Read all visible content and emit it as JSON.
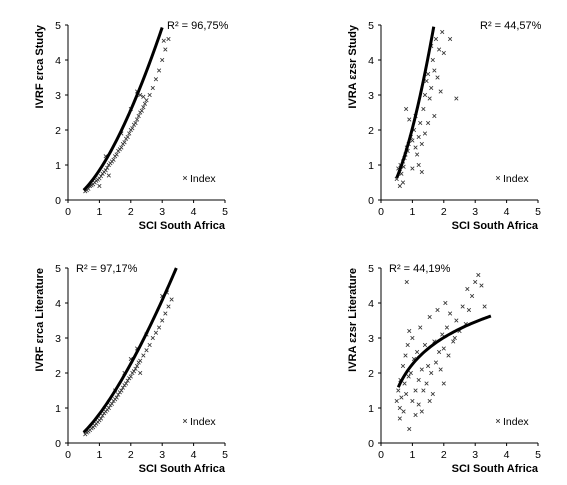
{
  "chart_data": [
    {
      "type": "scatter",
      "xlabel": "SCI South Africa",
      "ylabel": "IVRF εrca Study",
      "xlim": [
        0,
        5
      ],
      "ylim": [
        0,
        5
      ],
      "xticks": [
        "0",
        "1",
        "2",
        "3",
        "4",
        "5"
      ],
      "yticks": [
        "0",
        "1",
        "2",
        "3",
        "4",
        "5"
      ],
      "r2_label": "R² = 96,75%",
      "r2_placement": "top-right",
      "legend_label": "Index",
      "marker": "×",
      "trend": {
        "kind": "power",
        "a": 0.85,
        "b": 1.6,
        "x_from": 0.5,
        "x_to": 3.0
      },
      "points": [
        [
          0.55,
          0.25
        ],
        [
          0.6,
          0.28
        ],
        [
          0.65,
          0.32
        ],
        [
          0.7,
          0.4
        ],
        [
          0.75,
          0.42
        ],
        [
          0.8,
          0.45
        ],
        [
          0.85,
          0.5
        ],
        [
          0.9,
          0.55
        ],
        [
          0.95,
          0.58
        ],
        [
          1.0,
          0.62
        ],
        [
          1.05,
          0.68
        ],
        [
          1.1,
          0.75
        ],
        [
          1.15,
          0.8
        ],
        [
          1.2,
          0.85
        ],
        [
          1.25,
          0.92
        ],
        [
          1.3,
          1.0
        ],
        [
          1.35,
          1.05
        ],
        [
          1.4,
          1.1
        ],
        [
          1.45,
          1.15
        ],
        [
          1.5,
          1.25
        ],
        [
          1.55,
          1.3
        ],
        [
          1.6,
          1.4
        ],
        [
          1.65,
          1.45
        ],
        [
          1.7,
          1.5
        ],
        [
          1.75,
          1.6
        ],
        [
          1.8,
          1.65
        ],
        [
          1.85,
          1.75
        ],
        [
          1.9,
          1.8
        ],
        [
          1.95,
          1.9
        ],
        [
          2.0,
          2.0
        ],
        [
          2.05,
          2.05
        ],
        [
          2.1,
          2.15
        ],
        [
          2.15,
          2.2
        ],
        [
          2.2,
          2.3
        ],
        [
          2.25,
          2.4
        ],
        [
          2.3,
          2.5
        ],
        [
          2.35,
          2.55
        ],
        [
          2.4,
          2.65
        ],
        [
          2.45,
          2.75
        ],
        [
          2.5,
          2.85
        ],
        [
          2.6,
          3.0
        ],
        [
          2.7,
          3.2
        ],
        [
          2.8,
          3.45
        ],
        [
          2.9,
          3.7
        ],
        [
          3.0,
          4.0
        ],
        [
          3.1,
          4.3
        ],
        [
          3.2,
          4.6
        ],
        [
          1.0,
          0.4
        ],
        [
          1.3,
          0.7
        ],
        [
          2.2,
          3.1
        ],
        [
          2.4,
          2.95
        ],
        [
          1.7,
          1.9
        ],
        [
          2.0,
          2.6
        ],
        [
          2.3,
          3.0
        ],
        [
          3.05,
          4.55
        ],
        [
          1.2,
          1.25
        ]
      ]
    },
    {
      "type": "scatter",
      "xlabel": "SCI South Africa",
      "ylabel": "IVRA εzsr Study",
      "xlim": [
        0,
        5
      ],
      "ylim": [
        0,
        5
      ],
      "xticks": [
        "0",
        "1",
        "2",
        "3",
        "4",
        "5"
      ],
      "yticks": [
        "0",
        "1",
        "2",
        "3",
        "4",
        "5"
      ],
      "r2_label": "R² = 44,57%",
      "r2_placement": "top-right",
      "legend_label": "Index",
      "marker": "×",
      "trend": {
        "kind": "power",
        "a": 2.05,
        "b": 1.7,
        "x_from": 0.5,
        "x_to": 1.68
      },
      "points": [
        [
          0.5,
          0.6
        ],
        [
          0.55,
          0.9
        ],
        [
          0.6,
          0.8
        ],
        [
          0.62,
          1.0
        ],
        [
          0.65,
          0.75
        ],
        [
          0.7,
          1.1
        ],
        [
          0.72,
          0.95
        ],
        [
          0.75,
          1.2
        ],
        [
          0.78,
          1.3
        ],
        [
          0.8,
          2.6
        ],
        [
          0.82,
          1.5
        ],
        [
          0.85,
          1.4
        ],
        [
          0.88,
          1.6
        ],
        [
          0.9,
          2.3
        ],
        [
          0.95,
          1.8
        ],
        [
          1.0,
          1.7
        ],
        [
          1.0,
          0.9
        ],
        [
          1.05,
          2.0
        ],
        [
          1.1,
          1.5
        ],
        [
          1.1,
          2.4
        ],
        [
          1.15,
          1.3
        ],
        [
          1.2,
          1.8
        ],
        [
          1.2,
          1.0
        ],
        [
          1.25,
          2.2
        ],
        [
          1.3,
          1.6
        ],
        [
          1.3,
          0.8
        ],
        [
          1.35,
          2.6
        ],
        [
          1.4,
          3.0
        ],
        [
          1.4,
          1.9
        ],
        [
          1.45,
          3.4
        ],
        [
          1.5,
          2.2
        ],
        [
          1.5,
          3.6
        ],
        [
          1.55,
          2.9
        ],
        [
          1.6,
          4.4
        ],
        [
          1.6,
          3.2
        ],
        [
          1.65,
          4.0
        ],
        [
          1.7,
          3.7
        ],
        [
          1.7,
          2.4
        ],
        [
          1.75,
          4.6
        ],
        [
          1.8,
          3.5
        ],
        [
          1.85,
          4.3
        ],
        [
          1.9,
          3.1
        ],
        [
          1.95,
          4.8
        ],
        [
          2.0,
          4.2
        ],
        [
          2.2,
          4.6
        ],
        [
          2.4,
          2.9
        ],
        [
          0.7,
          0.5
        ],
        [
          0.6,
          0.4
        ]
      ]
    },
    {
      "type": "scatter",
      "xlabel": "SCI South Africa",
      "ylabel": "IVRF εrca Literature",
      "xlim": [
        0,
        5
      ],
      "ylim": [
        0,
        5
      ],
      "xticks": [
        "0",
        "1",
        "2",
        "3",
        "4",
        "5"
      ],
      "yticks": [
        "0",
        "1",
        "2",
        "3",
        "4",
        "5"
      ],
      "r2_label": "R² = 97,17%",
      "r2_placement": "top-left",
      "legend_label": "Index",
      "marker": "×",
      "trend": {
        "kind": "power",
        "a": 0.83,
        "b": 1.45,
        "x_from": 0.5,
        "x_to": 3.45
      },
      "points": [
        [
          0.55,
          0.25
        ],
        [
          0.6,
          0.3
        ],
        [
          0.65,
          0.33
        ],
        [
          0.7,
          0.37
        ],
        [
          0.75,
          0.42
        ],
        [
          0.8,
          0.45
        ],
        [
          0.85,
          0.5
        ],
        [
          0.9,
          0.55
        ],
        [
          0.95,
          0.6
        ],
        [
          1.0,
          0.65
        ],
        [
          1.05,
          0.7
        ],
        [
          1.1,
          0.78
        ],
        [
          1.15,
          0.85
        ],
        [
          1.2,
          0.9
        ],
        [
          1.25,
          0.95
        ],
        [
          1.3,
          1.0
        ],
        [
          1.35,
          1.08
        ],
        [
          1.4,
          1.12
        ],
        [
          1.45,
          1.2
        ],
        [
          1.5,
          1.25
        ],
        [
          1.55,
          1.3
        ],
        [
          1.6,
          1.38
        ],
        [
          1.65,
          1.45
        ],
        [
          1.7,
          1.5
        ],
        [
          1.75,
          1.58
        ],
        [
          1.8,
          1.65
        ],
        [
          1.85,
          1.7
        ],
        [
          1.9,
          1.78
        ],
        [
          1.95,
          1.85
        ],
        [
          2.0,
          1.9
        ],
        [
          2.05,
          2.0
        ],
        [
          2.1,
          2.05
        ],
        [
          2.15,
          2.12
        ],
        [
          2.2,
          2.2
        ],
        [
          2.25,
          2.3
        ],
        [
          2.3,
          2.35
        ],
        [
          2.4,
          2.5
        ],
        [
          2.5,
          2.65
        ],
        [
          2.6,
          2.8
        ],
        [
          2.7,
          3.0
        ],
        [
          2.8,
          3.15
        ],
        [
          2.9,
          3.3
        ],
        [
          3.0,
          3.5
        ],
        [
          3.1,
          3.7
        ],
        [
          3.2,
          3.9
        ],
        [
          3.3,
          4.1
        ],
        [
          3.0,
          4.2
        ],
        [
          2.5,
          3.1
        ],
        [
          2.2,
          2.7
        ],
        [
          2.0,
          2.4
        ],
        [
          1.8,
          2.0
        ],
        [
          1.5,
          1.5
        ],
        [
          2.3,
          2.0
        ],
        [
          3.15,
          4.3
        ]
      ]
    },
    {
      "type": "scatter",
      "xlabel": "SCI South Africa",
      "ylabel": "IVRA εzsr Literature",
      "xlim": [
        0,
        5
      ],
      "ylim": [
        0,
        5
      ],
      "xticks": [
        "0",
        "1",
        "2",
        "3",
        "4",
        "5"
      ],
      "yticks": [
        "0",
        "1",
        "2",
        "3",
        "4",
        "5"
      ],
      "r2_label": "R² = 44,19%",
      "r2_placement": "top-left",
      "legend_label": "Index",
      "marker": "×",
      "trend": {
        "kind": "log",
        "a": 2.25,
        "b": 1.1,
        "x_from": 0.55,
        "x_to": 3.5
      },
      "points": [
        [
          0.5,
          1.2
        ],
        [
          0.55,
          1.5
        ],
        [
          0.6,
          1.0
        ],
        [
          0.62,
          1.8
        ],
        [
          0.65,
          1.3
        ],
        [
          0.7,
          2.2
        ],
        [
          0.72,
          0.9
        ],
        [
          0.75,
          1.7
        ],
        [
          0.78,
          2.5
        ],
        [
          0.8,
          1.4
        ],
        [
          0.82,
          4.6
        ],
        [
          0.85,
          2.8
        ],
        [
          0.88,
          1.9
        ],
        [
          0.9,
          3.2
        ],
        [
          0.95,
          2.0
        ],
        [
          1.0,
          3.0
        ],
        [
          1.0,
          1.2
        ],
        [
          1.05,
          2.4
        ],
        [
          1.1,
          1.5
        ],
        [
          1.1,
          0.8
        ],
        [
          1.15,
          2.6
        ],
        [
          1.2,
          1.8
        ],
        [
          1.2,
          1.1
        ],
        [
          1.25,
          3.3
        ],
        [
          1.3,
          2.1
        ],
        [
          1.3,
          0.9
        ],
        [
          1.35,
          1.5
        ],
        [
          1.4,
          2.8
        ],
        [
          1.45,
          1.7
        ],
        [
          1.5,
          2.2
        ],
        [
          1.55,
          3.6
        ],
        [
          1.6,
          2.0
        ],
        [
          1.65,
          1.4
        ],
        [
          1.7,
          2.9
        ],
        [
          1.75,
          2.3
        ],
        [
          1.8,
          3.8
        ],
        [
          1.85,
          2.6
        ],
        [
          1.9,
          2.1
        ],
        [
          1.95,
          3.1
        ],
        [
          2.0,
          2.7
        ],
        [
          2.0,
          1.7
        ],
        [
          2.05,
          4.0
        ],
        [
          2.1,
          3.3
        ],
        [
          2.15,
          2.5
        ],
        [
          2.2,
          3.7
        ],
        [
          2.3,
          2.9
        ],
        [
          2.4,
          3.5
        ],
        [
          2.5,
          3.2
        ],
        [
          2.6,
          3.9
        ],
        [
          2.7,
          3.4
        ],
        [
          2.8,
          3.8
        ],
        [
          2.9,
          4.2
        ],
        [
          3.0,
          4.6
        ],
        [
          3.1,
          4.8
        ],
        [
          3.2,
          4.5
        ],
        [
          3.3,
          3.9
        ],
        [
          2.75,
          4.4
        ],
        [
          2.35,
          3.0
        ],
        [
          1.55,
          1.2
        ],
        [
          0.6,
          0.7
        ],
        [
          0.9,
          0.4
        ]
      ]
    }
  ]
}
